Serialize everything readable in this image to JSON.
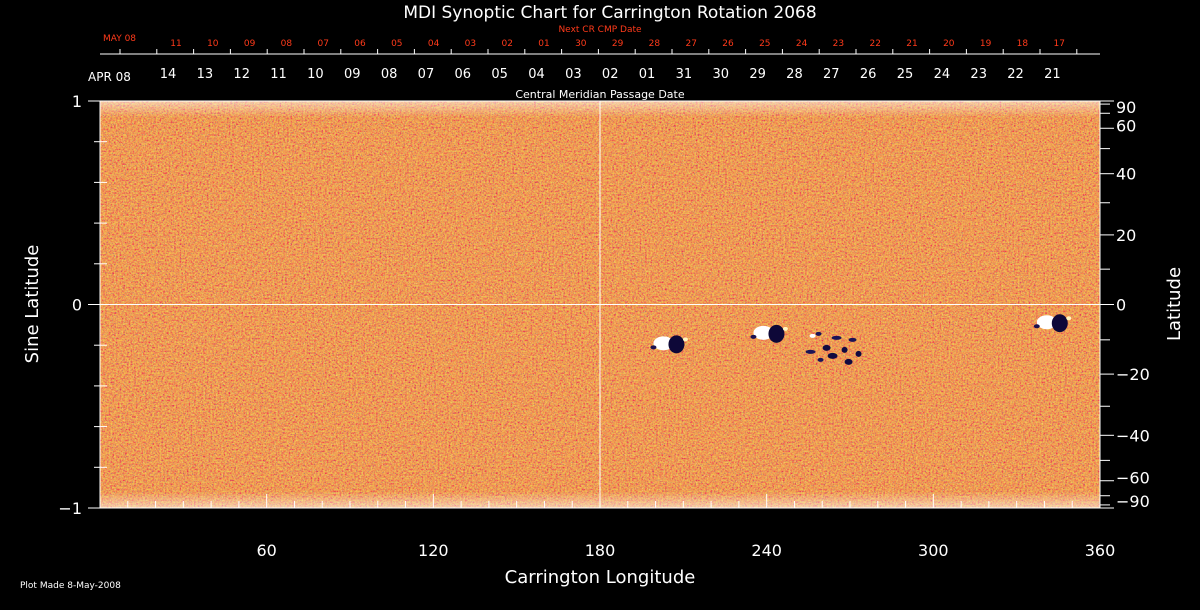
{
  "chart_data": {
    "type": "heatmap",
    "title": "MDI Synoptic Chart for Carrington Rotation 2068",
    "xlabel": "Carrington Longitude",
    "ylabel_left": "Sine Latitude",
    "ylabel_right": "Latitude",
    "xlim": [
      0,
      360
    ],
    "ylim": [
      -1,
      1
    ],
    "x_ticks": [
      60,
      120,
      180,
      240,
      300,
      360
    ],
    "y_left_ticks": [
      {
        "label": "1",
        "value": 1
      },
      {
        "label": "0",
        "value": 0
      },
      {
        "label": "−1",
        "value": -1
      }
    ],
    "y_right_ticks": [
      90,
      60,
      40,
      20,
      0,
      -20,
      -40,
      -60,
      -90
    ],
    "y_right_tick_labels": [
      "90",
      "60",
      "40",
      "20",
      "0",
      "−20",
      "−40",
      "−60",
      "−90"
    ],
    "top_axis_red_label": "Next CR CMP Date",
    "top_axis_red_month": "MAY 08",
    "top_axis_red_days": [
      "11",
      "10",
      "09",
      "08",
      "07",
      "06",
      "05",
      "04",
      "03",
      "02",
      "01",
      "30",
      "29",
      "28",
      "27",
      "26",
      "25",
      "24",
      "23",
      "22",
      "21",
      "20",
      "19",
      "18",
      "17"
    ],
    "top_axis_white_month": "APR 08",
    "top_axis_white_days": [
      "14",
      "13",
      "12",
      "11",
      "10",
      "09",
      "08",
      "07",
      "06",
      "05",
      "04",
      "03",
      "02",
      "01",
      "31",
      "30",
      "29",
      "28",
      "27",
      "26",
      "25",
      "24",
      "23",
      "22",
      "21"
    ],
    "top_axis_white_label": "Central Meridian Passage Date",
    "grid": "crosshair at longitude 180 and sine latitude 0",
    "colors": {
      "background": "#d94a12",
      "positive": "#ffffff",
      "negative": "#1a1050",
      "axes": "#ffffff",
      "top_red": "#ff3a1a"
    },
    "active_regions": [
      {
        "lon": 205,
        "lat": -11,
        "polarity": "bipolar"
      },
      {
        "lon": 241,
        "lat": -8,
        "polarity": "bipolar"
      },
      {
        "lon": 263,
        "lat": -10,
        "polarity": "mixed"
      },
      {
        "lon": 343,
        "lat": -5,
        "polarity": "bipolar"
      }
    ]
  },
  "footer": {
    "plot_made": "Plot Made  8-May-2008"
  }
}
